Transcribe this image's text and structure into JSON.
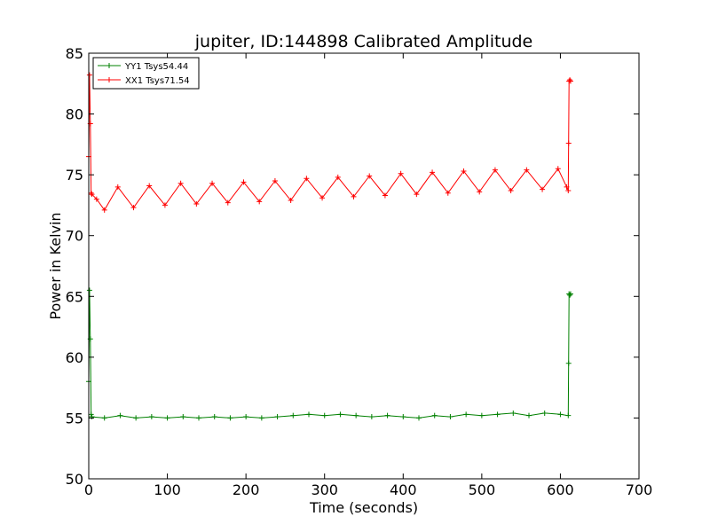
{
  "chart_data": {
    "type": "line",
    "title": "jupiter, ID:144898 Calibrated Amplitude",
    "xlabel": "Time (seconds)",
    "ylabel": "Power in Kelvin",
    "xlim": [
      0,
      700
    ],
    "ylim": [
      50,
      85
    ],
    "xticks": [
      0,
      100,
      200,
      300,
      400,
      500,
      600,
      700
    ],
    "yticks": [
      50,
      55,
      60,
      65,
      70,
      75,
      80,
      85
    ],
    "grid": false,
    "legend_position": "top-left",
    "marker": "+",
    "series": [
      {
        "name": "YY1 Tsys54.44",
        "color": "#008000",
        "x": [
          0,
          1,
          2,
          3,
          4,
          20,
          40,
          60,
          80,
          100,
          120,
          140,
          160,
          180,
          200,
          220,
          240,
          260,
          280,
          300,
          320,
          340,
          360,
          380,
          400,
          420,
          440,
          460,
          480,
          500,
          520,
          540,
          560,
          580,
          600,
          610,
          610.5,
          611,
          612,
          613
        ],
        "values": [
          58,
          65.5,
          61.5,
          55.3,
          55.1,
          55.0,
          55.2,
          55.0,
          55.1,
          55.0,
          55.1,
          55.0,
          55.1,
          55.0,
          55.1,
          55.0,
          55.1,
          55.2,
          55.3,
          55.2,
          55.3,
          55.2,
          55.1,
          55.2,
          55.1,
          55.0,
          55.2,
          55.1,
          55.3,
          55.2,
          55.3,
          55.4,
          55.2,
          55.4,
          55.3,
          55.2,
          59.5,
          65.2,
          65.1,
          65.2
        ]
      },
      {
        "name": "XX1 Tsys71.54",
        "color": "#ff0000",
        "x": [
          0,
          1,
          2,
          3,
          4,
          10,
          20,
          37,
          57,
          77,
          97,
          117,
          137,
          157,
          177,
          197,
          217,
          237,
          257,
          277,
          297,
          317,
          337,
          357,
          377,
          397,
          417,
          437,
          457,
          477,
          497,
          517,
          537,
          557,
          577,
          597,
          608,
          610,
          610.5,
          611,
          612,
          613
        ],
        "values": [
          76.5,
          83.2,
          79.2,
          73.5,
          73.4,
          73.0,
          72.1,
          74.0,
          72.3,
          74.1,
          72.5,
          74.3,
          72.6,
          74.3,
          72.7,
          74.4,
          72.8,
          74.5,
          72.9,
          74.7,
          73.1,
          74.8,
          73.2,
          74.9,
          73.3,
          75.1,
          73.4,
          75.2,
          73.5,
          75.3,
          73.6,
          75.4,
          73.7,
          75.4,
          73.8,
          75.5,
          74.0,
          73.7,
          77.6,
          82.7,
          82.8,
          82.7
        ]
      }
    ]
  }
}
